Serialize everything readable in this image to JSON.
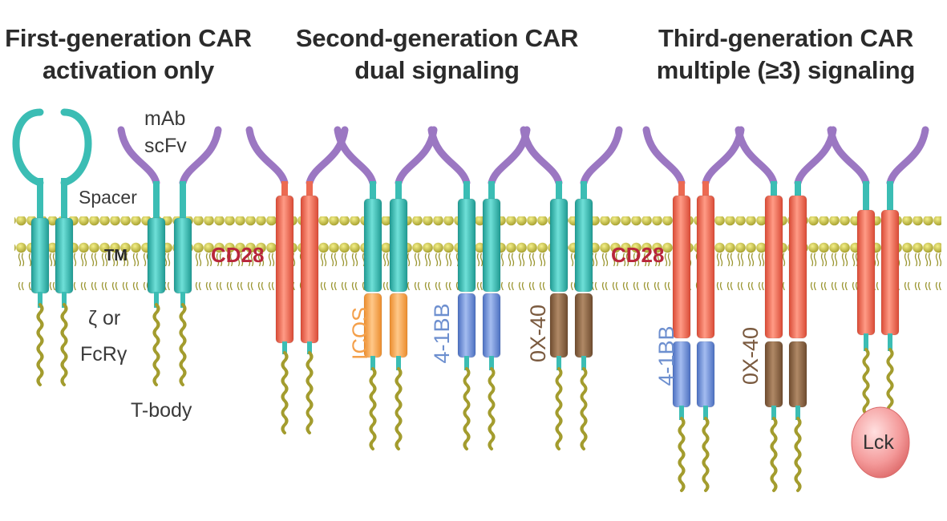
{
  "headers": [
    {
      "title": "First-generation CAR",
      "subtitle": "activation only"
    },
    {
      "title": "Second-generation CAR",
      "subtitle": "dual signaling"
    },
    {
      "title": "Third-generation CAR",
      "subtitle": "multiple (≥3) signaling"
    }
  ],
  "labels": {
    "mab": "mAb",
    "scfv": "scFv",
    "spacer": "Spacer",
    "tm": "TM",
    "zeta": "ζ or",
    "fcr": "FcRγ",
    "tbody": "T-body",
    "cd28_second": "CD28",
    "cd28_third": "CD28",
    "icos": "ICOS",
    "bb_second": "4-1BB",
    "ox_second": "0X-40",
    "bb_third": "4-1BB",
    "ox_third": "0X-40",
    "lck": "Lck"
  },
  "colors": {
    "teal": "#3bbdb4",
    "purple": "#9b77c2",
    "red": "#ec6a52",
    "orange": "#f7a54f",
    "blue": "#6e8fd1",
    "brown": "#8c6544",
    "olive": "#a6a137",
    "lck": "#f08a8a",
    "cd28_text": "#b8263a",
    "icos_text": "#f4a04b",
    "bb_text": "#6d8fcf",
    "ox_text": "#7a5a3f"
  }
}
